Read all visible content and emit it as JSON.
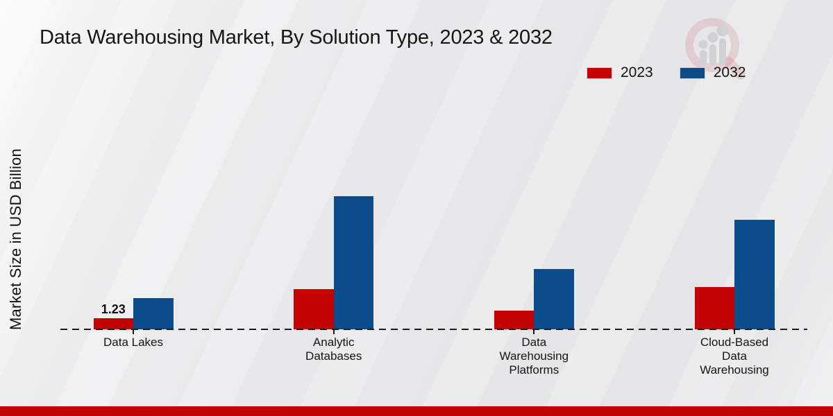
{
  "title": "Data Warehousing Market, By Solution Type, 2023 & 2032",
  "colors": {
    "series_2023": "#c40404",
    "series_2032": "#0c4c8a",
    "footer_bar": "#c00404",
    "baseline": "#1b1b1b"
  },
  "watermark": {
    "icon": "magnifier-bar-chart-logo"
  },
  "chart_data": {
    "type": "bar",
    "title": "Data Warehousing Market, By Solution Type, 2023 & 2032",
    "xlabel": "",
    "ylabel": "Market Size in USD Billion",
    "categories": [
      "Data Lakes",
      "Analytic Databases",
      "Data Warehousing Platforms",
      "Cloud-Based Data Warehousing"
    ],
    "category_label_lines": [
      [
        "Data Lakes"
      ],
      [
        "Analytic",
        "Databases"
      ],
      [
        "Data",
        "Warehousing",
        "Platforms"
      ],
      [
        "Cloud-Based",
        "Data",
        "Warehousing"
      ]
    ],
    "series": [
      {
        "name": "2023",
        "color": "#c40404",
        "values": [
          1.23,
          4.6,
          2.1,
          4.8
        ]
      },
      {
        "name": "2032",
        "color": "#0c4c8a",
        "values": [
          3.6,
          15.2,
          6.9,
          12.5
        ]
      }
    ],
    "data_labels": [
      {
        "series_index": 0,
        "category_index": 0,
        "text": "1.23"
      }
    ],
    "ylim": [
      0,
      16
    ],
    "grid": false,
    "baseline_style": "dashed",
    "legend_position": "top-right"
  }
}
